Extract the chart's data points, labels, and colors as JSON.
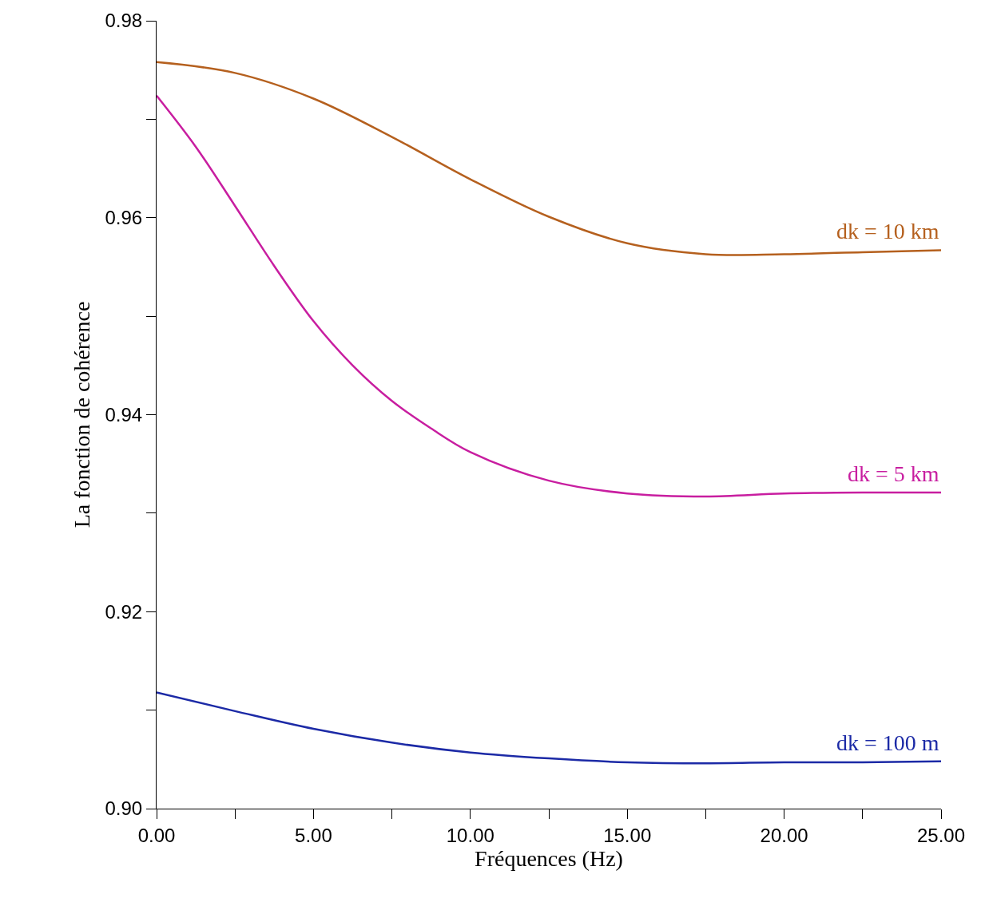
{
  "chart_data": {
    "type": "line",
    "xlabel": "Fréquences (Hz)",
    "ylabel": "La fonction de cohérence",
    "x": [
      0,
      2.5,
      5,
      7.5,
      10,
      12.5,
      15,
      17.5,
      20,
      22.5,
      25
    ],
    "series": [
      {
        "name": "dk = 10 km",
        "color": "#b5601e",
        "values": [
          0.9758,
          0.9747,
          0.9721,
          0.9682,
          0.9639,
          0.9601,
          0.9574,
          0.9563,
          0.9563,
          0.9565,
          0.9567
        ]
      },
      {
        "name": "dk = 5 km",
        "color": "#c81ea0",
        "x": [
          0,
          1.25,
          2.5,
          3.75,
          5,
          6.25,
          7.5,
          8.75,
          10,
          12.5,
          15,
          17.5,
          20,
          22.5,
          25
        ],
        "values": [
          0.9724,
          0.9672,
          0.9612,
          0.9551,
          0.9495,
          0.945,
          0.9414,
          0.9386,
          0.9362,
          0.9333,
          0.932,
          0.9317,
          0.932,
          0.9321,
          0.9321
        ]
      },
      {
        "name": "dk = 100 m",
        "color": "#1c2aa6",
        "values": [
          0.9118,
          0.9099,
          0.9081,
          0.9067,
          0.9057,
          0.9051,
          0.9047,
          0.9046,
          0.9047,
          0.9047,
          0.9048
        ]
      }
    ],
    "xlim": [
      0,
      25
    ],
    "ylim": [
      0.9,
      0.98
    ],
    "xticks": [
      {
        "value": 0,
        "label": "0.00"
      },
      {
        "value": 2.5,
        "label": null
      },
      {
        "value": 5,
        "label": "5.00"
      },
      {
        "value": 7.5,
        "label": null
      },
      {
        "value": 10,
        "label": "10.00"
      },
      {
        "value": 12.5,
        "label": null
      },
      {
        "value": 15,
        "label": "15.00"
      },
      {
        "value": 17.5,
        "label": null
      },
      {
        "value": 20,
        "label": "20.00"
      },
      {
        "value": 22.5,
        "label": null
      },
      {
        "value": 25,
        "label": "25.00"
      }
    ],
    "yticks": [
      {
        "value": 0.9,
        "label": "0.90"
      },
      {
        "value": 0.91,
        "label": null
      },
      {
        "value": 0.92,
        "label": "0.92"
      },
      {
        "value": 0.93,
        "label": null
      },
      {
        "value": 0.94,
        "label": "0.94"
      },
      {
        "value": 0.95,
        "label": null
      },
      {
        "value": 0.96,
        "label": "0.96"
      },
      {
        "value": 0.97,
        "label": null
      },
      {
        "value": 0.98,
        "label": "0.98"
      }
    ],
    "legend": false
  }
}
